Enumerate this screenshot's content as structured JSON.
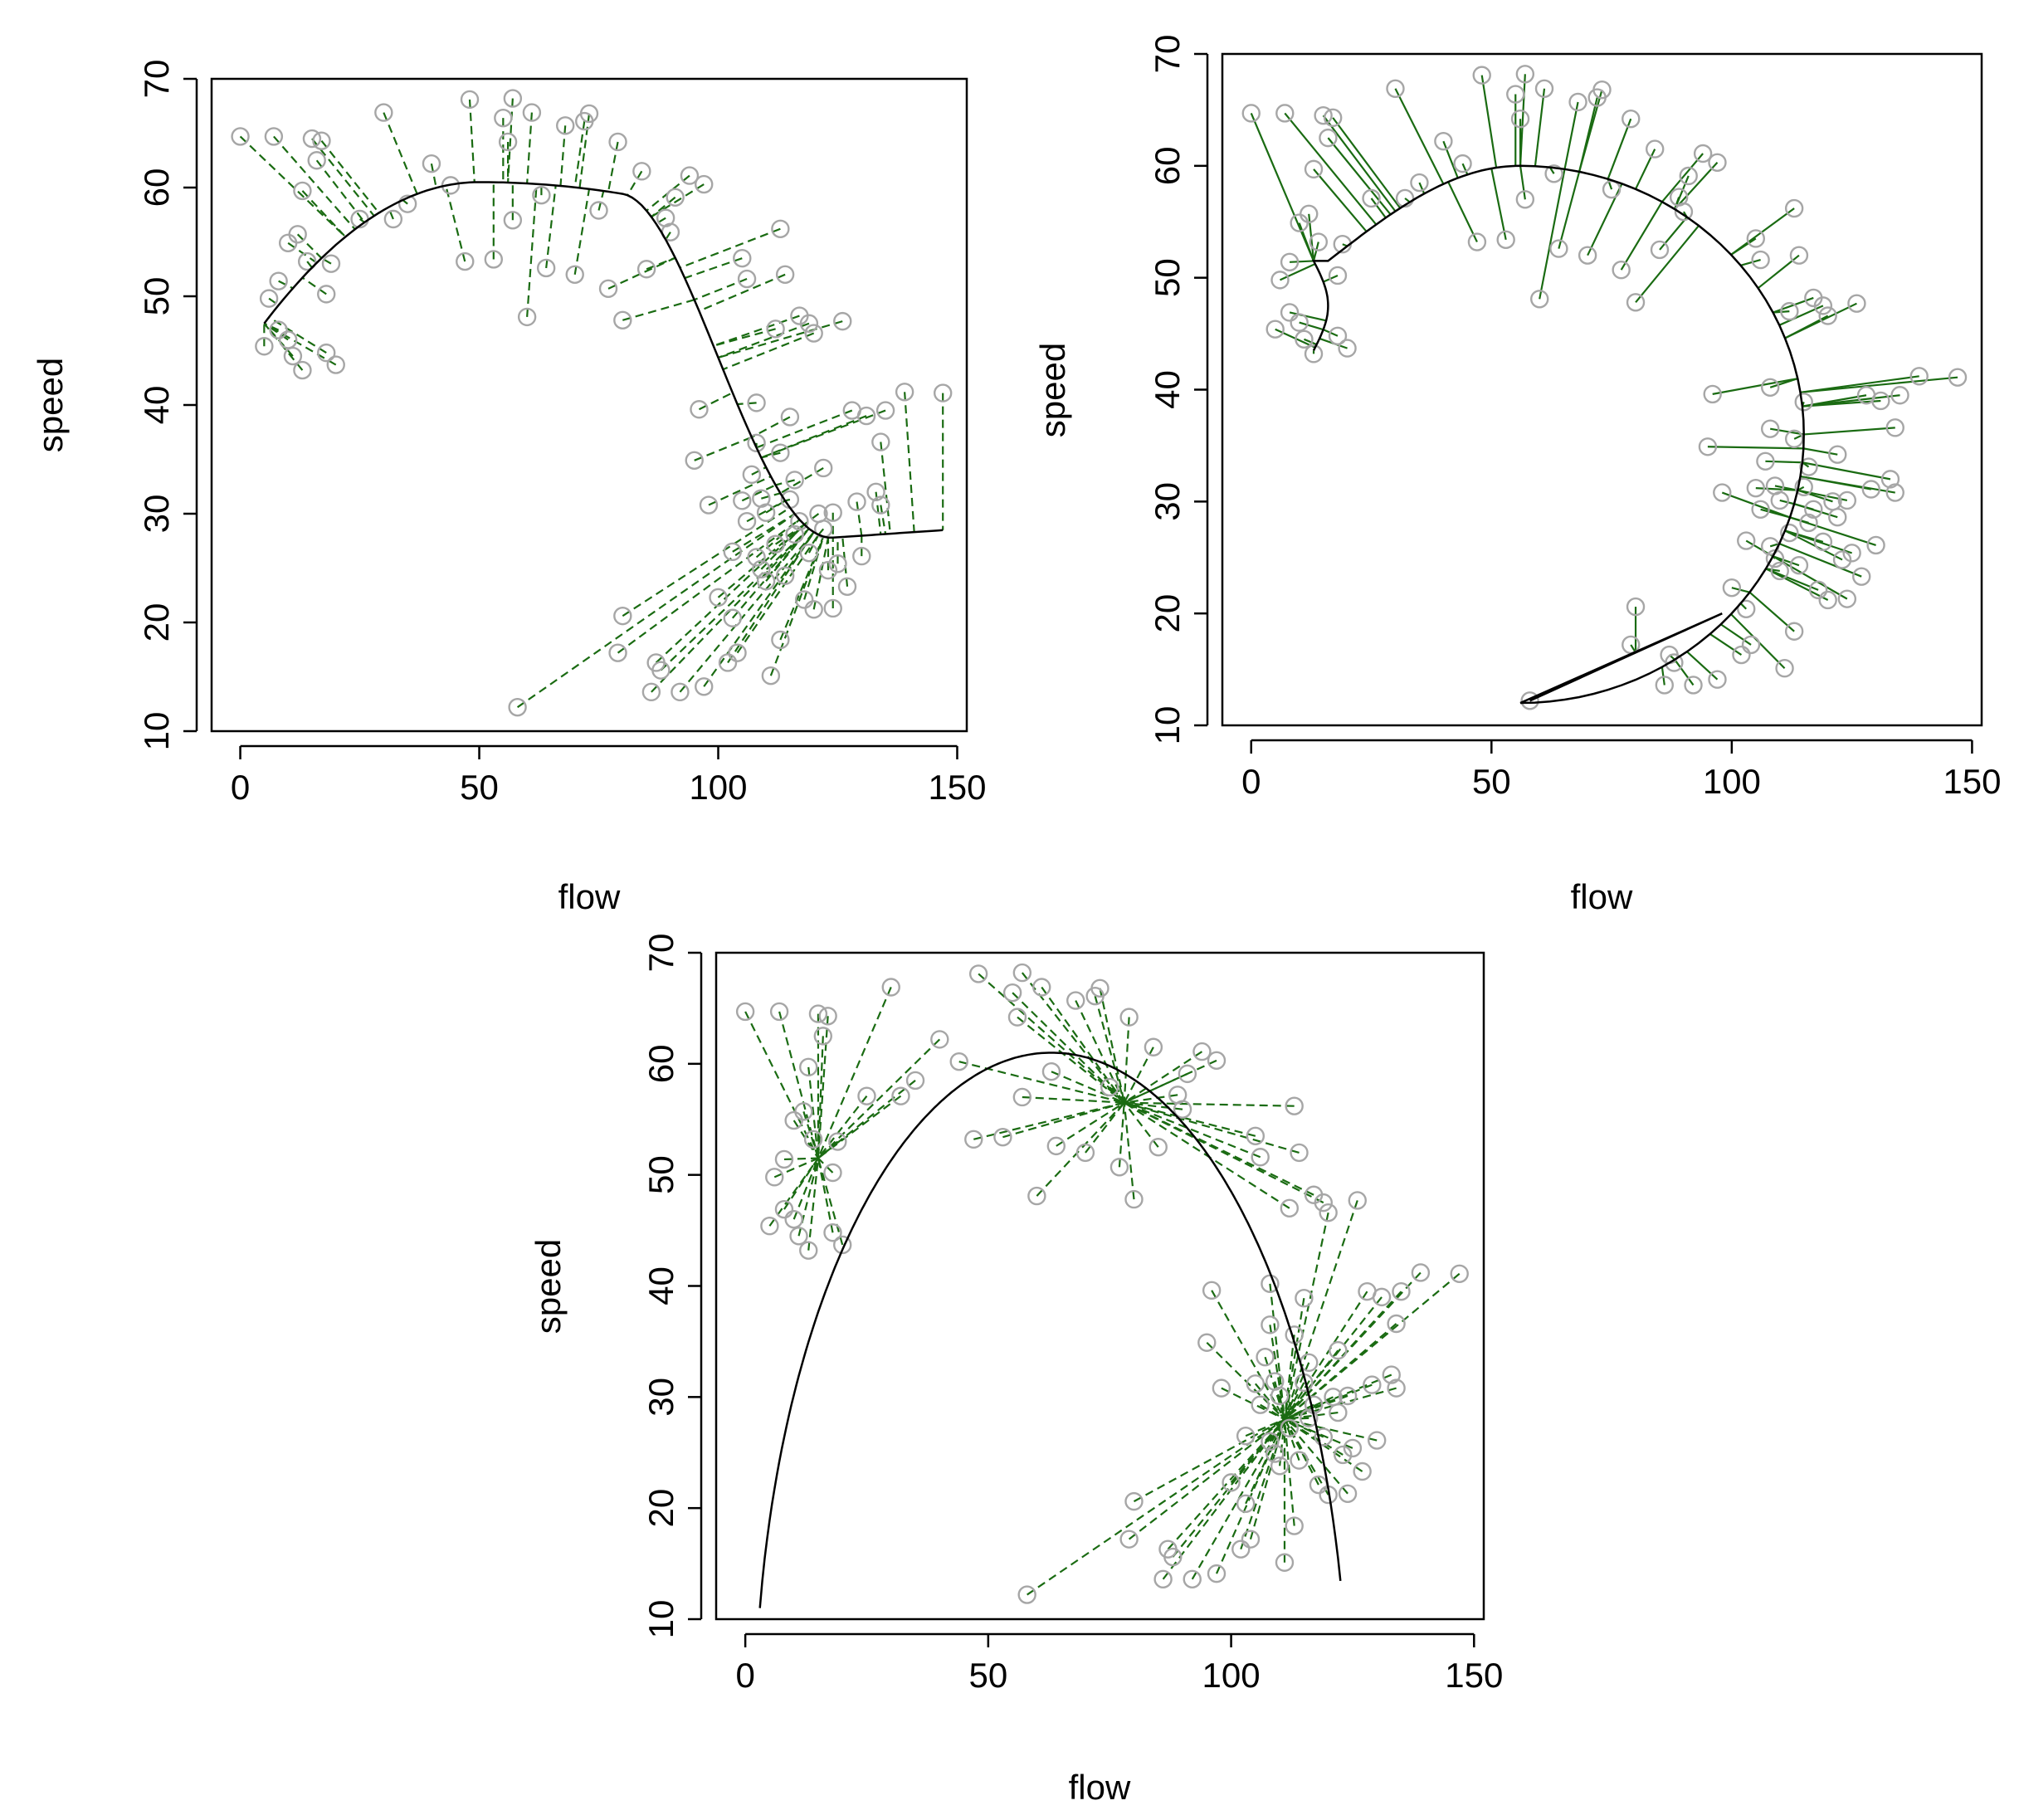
{
  "figure": {
    "panels": [
      "principal-curve-dashed-projection",
      "principal-curve-solid-projection",
      "arc-fit-dashed-projection"
    ]
  },
  "chart_data": [
    {
      "type": "scatter",
      "title": "",
      "xlabel": "flow",
      "ylabel": "speed",
      "xlim": [
        -6,
        152
      ],
      "ylim": [
        10,
        70
      ],
      "xticks": [
        "0",
        "50",
        "100",
        "150"
      ],
      "yticks": [
        "10",
        "20",
        "30",
        "40",
        "50",
        "60",
        "70"
      ],
      "projection_style": "dashed",
      "curve_style": "smooth-decreasing",
      "points": [
        [
          0,
          64.7
        ],
        [
          7,
          64.7
        ],
        [
          15,
          64.5
        ],
        [
          17,
          64.3
        ],
        [
          16,
          62.5
        ],
        [
          13,
          59.7
        ],
        [
          6,
          49.8
        ],
        [
          8,
          46.9
        ],
        [
          10,
          46.0
        ],
        [
          11,
          44.5
        ],
        [
          13,
          43.2
        ],
        [
          18,
          44.8
        ],
        [
          20,
          43.7
        ],
        [
          5,
          45.4
        ],
        [
          8,
          51.4
        ],
        [
          10,
          54.9
        ],
        [
          12,
          55.7
        ],
        [
          14,
          53.2
        ],
        [
          18,
          50.2
        ],
        [
          19,
          53.0
        ],
        [
          25,
          57.1
        ],
        [
          30,
          66.9
        ],
        [
          32,
          57.1
        ],
        [
          35,
          58.5
        ],
        [
          40,
          62.2
        ],
        [
          44,
          60.2
        ],
        [
          48,
          68.1
        ],
        [
          47,
          53.2
        ],
        [
          53,
          53.4
        ],
        [
          55,
          66.4
        ],
        [
          56,
          64.2
        ],
        [
          57,
          68.2
        ],
        [
          57,
          57.0
        ],
        [
          58,
          12.2
        ],
        [
          60,
          48.1
        ],
        [
          61,
          66.9
        ],
        [
          63,
          59.3
        ],
        [
          64,
          52.6
        ],
        [
          68,
          65.7
        ],
        [
          70,
          52.0
        ],
        [
          72,
          66.1
        ],
        [
          73,
          66.8
        ],
        [
          75,
          57.9
        ],
        [
          77,
          50.7
        ],
        [
          79,
          64.2
        ],
        [
          80,
          47.8
        ],
        [
          84,
          61.5
        ],
        [
          85,
          52.5
        ],
        [
          89,
          57.2
        ],
        [
          90,
          55.9
        ],
        [
          91,
          59.1
        ],
        [
          94,
          61.1
        ],
        [
          97,
          60.3
        ],
        [
          80,
          20.6
        ],
        [
          79,
          17.2
        ],
        [
          87,
          16.3
        ],
        [
          88,
          15.6
        ],
        [
          86,
          13.6
        ],
        [
          92,
          13.6
        ],
        [
          95,
          34.9
        ],
        [
          96,
          39.6
        ],
        [
          97,
          14.1
        ],
        [
          98,
          30.8
        ],
        [
          100,
          22.3
        ],
        [
          102,
          16.3
        ],
        [
          103,
          20.4
        ],
        [
          104,
          17.2
        ],
        [
          105,
          53.5
        ],
        [
          106,
          51.6
        ],
        [
          108,
          40.2
        ],
        [
          108,
          36.5
        ],
        [
          109,
          31.4
        ],
        [
          110,
          23.8
        ],
        [
          111,
          15.1
        ],
        [
          112,
          47.0
        ],
        [
          113,
          56.2
        ],
        [
          113,
          18.4
        ],
        [
          114,
          52.0
        ],
        [
          115,
          38.9
        ],
        [
          116,
          33.1
        ],
        [
          117,
          48.2
        ],
        [
          119,
          47.5
        ],
        [
          120,
          46.6
        ],
        [
          121,
          30.0
        ],
        [
          120,
          21.2
        ],
        [
          122,
          34.2
        ],
        [
          126,
          47.7
        ],
        [
          125,
          25.4
        ],
        [
          124,
          21.3
        ],
        [
          127,
          23.3
        ],
        [
          128,
          39.5
        ],
        [
          129,
          31.1
        ],
        [
          130,
          26.1
        ],
        [
          131,
          39.0
        ],
        [
          133,
          32.0
        ],
        [
          134,
          36.6
        ],
        [
          135,
          39.5
        ],
        [
          134,
          30.8
        ],
        [
          139,
          41.2
        ],
        [
          147,
          41.1
        ],
        [
          103,
          26.5
        ],
        [
          106,
          29.3
        ],
        [
          108,
          26.0
        ],
        [
          110,
          30.1
        ],
        [
          112,
          27.2
        ],
        [
          114,
          24.3
        ],
        [
          116,
          28.1
        ],
        [
          118,
          22.1
        ],
        [
          119,
          26.4
        ],
        [
          122,
          28.6
        ],
        [
          124,
          30.1
        ],
        [
          123,
          24.8
        ],
        [
          105,
          31.2
        ],
        [
          107,
          33.6
        ],
        [
          109,
          24.9
        ],
        [
          113,
          35.6
        ],
        [
          115,
          31.3
        ],
        [
          117,
          29.3
        ]
      ]
    },
    {
      "type": "scatter",
      "title": "",
      "xlabel": "flow",
      "ylabel": "speed",
      "xlim": [
        -6,
        152
      ],
      "ylim": [
        10,
        70
      ],
      "xticks": [
        "0",
        "50",
        "100",
        "150"
      ],
      "yticks": [
        "10",
        "20",
        "30",
        "40",
        "50",
        "60",
        "70"
      ],
      "projection_style": "solid",
      "curve_style": "horseshoe",
      "points": [
        [
          0,
          64.7
        ],
        [
          7,
          64.7
        ],
        [
          15,
          64.5
        ],
        [
          17,
          64.3
        ],
        [
          16,
          62.5
        ],
        [
          13,
          59.7
        ],
        [
          6,
          49.8
        ],
        [
          8,
          46.9
        ],
        [
          10,
          46.0
        ],
        [
          11,
          44.5
        ],
        [
          13,
          43.2
        ],
        [
          18,
          44.8
        ],
        [
          20,
          43.7
        ],
        [
          5,
          45.4
        ],
        [
          8,
          51.4
        ],
        [
          10,
          54.9
        ],
        [
          12,
          55.7
        ],
        [
          14,
          53.2
        ],
        [
          18,
          50.2
        ],
        [
          19,
          53.0
        ],
        [
          25,
          57.1
        ],
        [
          30,
          66.9
        ],
        [
          32,
          57.1
        ],
        [
          35,
          58.5
        ],
        [
          40,
          62.2
        ],
        [
          44,
          60.2
        ],
        [
          48,
          68.1
        ],
        [
          47,
          53.2
        ],
        [
          53,
          53.4
        ],
        [
          55,
          66.4
        ],
        [
          56,
          64.2
        ],
        [
          57,
          68.2
        ],
        [
          57,
          57.0
        ],
        [
          58,
          12.2
        ],
        [
          60,
          48.1
        ],
        [
          61,
          66.9
        ],
        [
          63,
          59.3
        ],
        [
          64,
          52.6
        ],
        [
          68,
          65.7
        ],
        [
          70,
          52.0
        ],
        [
          72,
          66.1
        ],
        [
          73,
          66.8
        ],
        [
          75,
          57.9
        ],
        [
          77,
          50.7
        ],
        [
          79,
          64.2
        ],
        [
          80,
          47.8
        ],
        [
          84,
          61.5
        ],
        [
          85,
          52.5
        ],
        [
          89,
          57.2
        ],
        [
          90,
          55.9
        ],
        [
          91,
          59.1
        ],
        [
          94,
          61.1
        ],
        [
          97,
          60.3
        ],
        [
          80,
          20.6
        ],
        [
          79,
          17.2
        ],
        [
          87,
          16.3
        ],
        [
          88,
          15.6
        ],
        [
          86,
          13.6
        ],
        [
          92,
          13.6
        ],
        [
          95,
          34.9
        ],
        [
          96,
          39.6
        ],
        [
          97,
          14.1
        ],
        [
          98,
          30.8
        ],
        [
          100,
          22.3
        ],
        [
          102,
          16.3
        ],
        [
          103,
          20.4
        ],
        [
          104,
          17.2
        ],
        [
          105,
          53.5
        ],
        [
          106,
          51.6
        ],
        [
          108,
          40.2
        ],
        [
          108,
          36.5
        ],
        [
          109,
          31.4
        ],
        [
          110,
          23.8
        ],
        [
          111,
          15.1
        ],
        [
          112,
          47.0
        ],
        [
          113,
          56.2
        ],
        [
          113,
          18.4
        ],
        [
          114,
          52.0
        ],
        [
          115,
          38.9
        ],
        [
          116,
          33.1
        ],
        [
          117,
          48.2
        ],
        [
          119,
          47.5
        ],
        [
          120,
          46.6
        ],
        [
          121,
          30.0
        ],
        [
          120,
          21.2
        ],
        [
          122,
          34.2
        ],
        [
          126,
          47.7
        ],
        [
          125,
          25.4
        ],
        [
          124,
          21.3
        ],
        [
          127,
          23.3
        ],
        [
          128,
          39.5
        ],
        [
          129,
          31.1
        ],
        [
          130,
          26.1
        ],
        [
          131,
          39.0
        ],
        [
          133,
          32.0
        ],
        [
          134,
          36.6
        ],
        [
          135,
          39.5
        ],
        [
          134,
          30.8
        ],
        [
          139,
          41.2
        ],
        [
          147,
          41.1
        ],
        [
          103,
          26.5
        ],
        [
          106,
          29.3
        ],
        [
          108,
          26.0
        ],
        [
          110,
          30.1
        ],
        [
          112,
          27.2
        ],
        [
          114,
          24.3
        ],
        [
          116,
          28.1
        ],
        [
          118,
          22.1
        ],
        [
          119,
          26.4
        ],
        [
          122,
          28.6
        ],
        [
          124,
          30.1
        ],
        [
          123,
          24.8
        ],
        [
          105,
          31.2
        ],
        [
          107,
          33.6
        ],
        [
          109,
          24.9
        ],
        [
          113,
          35.6
        ],
        [
          115,
          31.3
        ],
        [
          117,
          29.3
        ]
      ]
    },
    {
      "type": "scatter",
      "title": "",
      "xlabel": "flow",
      "ylabel": "speed",
      "xlim": [
        -6,
        152
      ],
      "ylim": [
        10,
        70
      ],
      "xticks": [
        "0",
        "50",
        "100",
        "150"
      ],
      "yticks": [
        "10",
        "20",
        "30",
        "40",
        "50",
        "60",
        "70"
      ],
      "projection_style": "dashed",
      "curve_style": "arc-with-hubs",
      "points": [
        [
          0,
          64.7
        ],
        [
          7,
          64.7
        ],
        [
          15,
          64.5
        ],
        [
          17,
          64.3
        ],
        [
          16,
          62.5
        ],
        [
          13,
          59.7
        ],
        [
          6,
          49.8
        ],
        [
          8,
          46.9
        ],
        [
          10,
          46.0
        ],
        [
          11,
          44.5
        ],
        [
          13,
          43.2
        ],
        [
          18,
          44.8
        ],
        [
          20,
          43.7
        ],
        [
          5,
          45.4
        ],
        [
          8,
          51.4
        ],
        [
          10,
          54.9
        ],
        [
          12,
          55.7
        ],
        [
          14,
          53.2
        ],
        [
          18,
          50.2
        ],
        [
          19,
          53.0
        ],
        [
          25,
          57.1
        ],
        [
          30,
          66.9
        ],
        [
          32,
          57.1
        ],
        [
          35,
          58.5
        ],
        [
          40,
          62.2
        ],
        [
          44,
          60.2
        ],
        [
          48,
          68.1
        ],
        [
          47,
          53.2
        ],
        [
          53,
          53.4
        ],
        [
          55,
          66.4
        ],
        [
          56,
          64.2
        ],
        [
          57,
          68.2
        ],
        [
          57,
          57.0
        ],
        [
          58,
          12.2
        ],
        [
          60,
          48.1
        ],
        [
          61,
          66.9
        ],
        [
          63,
          59.3
        ],
        [
          64,
          52.6
        ],
        [
          68,
          65.7
        ],
        [
          70,
          52.0
        ],
        [
          72,
          66.1
        ],
        [
          73,
          66.8
        ],
        [
          75,
          57.9
        ],
        [
          77,
          50.7
        ],
        [
          79,
          64.2
        ],
        [
          80,
          47.8
        ],
        [
          84,
          61.5
        ],
        [
          85,
          52.5
        ],
        [
          89,
          57.2
        ],
        [
          90,
          55.9
        ],
        [
          91,
          59.1
        ],
        [
          94,
          61.1
        ],
        [
          97,
          60.3
        ],
        [
          80,
          20.6
        ],
        [
          79,
          17.2
        ],
        [
          87,
          16.3
        ],
        [
          88,
          15.6
        ],
        [
          86,
          13.6
        ],
        [
          92,
          13.6
        ],
        [
          95,
          34.9
        ],
        [
          96,
          39.6
        ],
        [
          97,
          14.1
        ],
        [
          98,
          30.8
        ],
        [
          100,
          22.3
        ],
        [
          102,
          16.3
        ],
        [
          103,
          20.4
        ],
        [
          104,
          17.2
        ],
        [
          105,
          53.5
        ],
        [
          106,
          51.6
        ],
        [
          108,
          40.2
        ],
        [
          108,
          36.5
        ],
        [
          109,
          31.4
        ],
        [
          110,
          23.8
        ],
        [
          111,
          15.1
        ],
        [
          112,
          47.0
        ],
        [
          113,
          56.2
        ],
        [
          113,
          18.4
        ],
        [
          114,
          52.0
        ],
        [
          115,
          38.9
        ],
        [
          116,
          33.1
        ],
        [
          117,
          48.2
        ],
        [
          119,
          47.5
        ],
        [
          120,
          46.6
        ],
        [
          121,
          30.0
        ],
        [
          120,
          21.2
        ],
        [
          122,
          34.2
        ],
        [
          126,
          47.7
        ],
        [
          125,
          25.4
        ],
        [
          124,
          21.3
        ],
        [
          127,
          23.3
        ],
        [
          128,
          39.5
        ],
        [
          129,
          31.1
        ],
        [
          130,
          26.1
        ],
        [
          131,
          39.0
        ],
        [
          133,
          32.0
        ],
        [
          134,
          36.6
        ],
        [
          135,
          39.5
        ],
        [
          134,
          30.8
        ],
        [
          139,
          41.2
        ],
        [
          147,
          41.1
        ],
        [
          103,
          26.5
        ],
        [
          106,
          29.3
        ],
        [
          108,
          26.0
        ],
        [
          110,
          30.1
        ],
        [
          112,
          27.2
        ],
        [
          114,
          24.3
        ],
        [
          116,
          28.1
        ],
        [
          118,
          22.1
        ],
        [
          119,
          26.4
        ],
        [
          122,
          28.6
        ],
        [
          124,
          30.1
        ],
        [
          123,
          24.8
        ],
        [
          105,
          31.2
        ],
        [
          107,
          33.6
        ],
        [
          109,
          24.9
        ],
        [
          113,
          35.6
        ],
        [
          115,
          31.3
        ],
        [
          117,
          29.3
        ]
      ]
    }
  ],
  "colors": {
    "projection": "#1a6b12",
    "point": "#a6a6a6",
    "curve": "#000000",
    "axis": "#000000",
    "background": "#ffffff"
  }
}
